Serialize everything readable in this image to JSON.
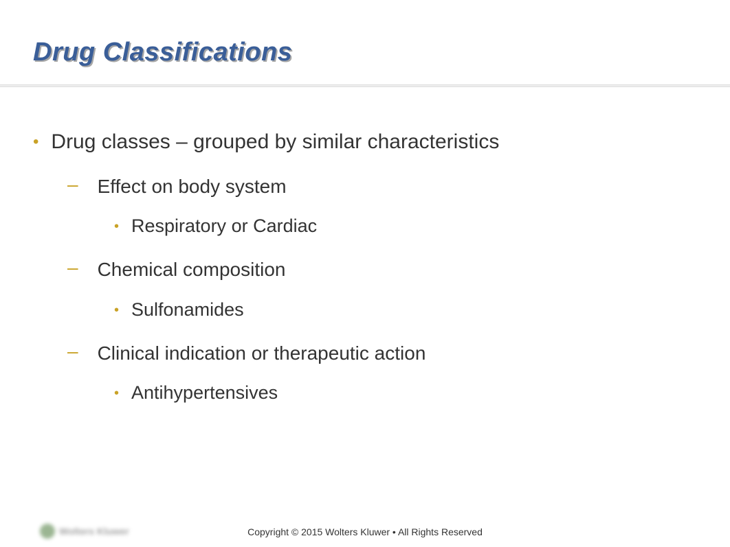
{
  "title": "Drug Classifications",
  "title_color": "#3a5e98",
  "title_fontsize": 38,
  "bullet_color": "#c9a227",
  "text_color": "#333333",
  "content": {
    "level1": {
      "text": "Drug classes – grouped by similar characteristics",
      "fontsize": 30
    },
    "items": [
      {
        "level2_text": "Effect on body system",
        "level3_text": "Respiratory or Cardiac"
      },
      {
        "level2_text": "Chemical composition",
        "level3_text": "Sulfonamides"
      },
      {
        "level2_text": "Clinical indication or therapeutic action",
        "level3_text": "Antihypertensives"
      }
    ],
    "level2_fontsize": 28,
    "level3_fontsize": 27
  },
  "footer_text": "Copyright © 2015 Wolters Kluwer • All Rights Reserved",
  "footer_fontsize": 14,
  "background_color": "#ffffff"
}
